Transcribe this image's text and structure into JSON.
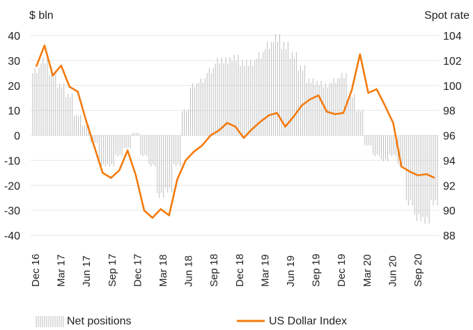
{
  "chart_data": {
    "type": "bar+line",
    "title": "",
    "left_axis": {
      "label": "$ bln",
      "range": [
        -40,
        40
      ],
      "ticks": [
        -40,
        -30,
        -20,
        -10,
        0,
        10,
        20,
        30,
        40
      ]
    },
    "right_axis": {
      "label": "Spot rate",
      "range": [
        88,
        104
      ],
      "ticks": [
        88,
        90,
        92,
        94,
        96,
        98,
        100,
        102,
        104
      ]
    },
    "x_ticks": [
      "Dec 16",
      "Mar 17",
      "Jun 17",
      "Sep 17",
      "Dec 17",
      "Mar 18",
      "Jun 18",
      "Sep 18",
      "Dec 18",
      "Mar 19",
      "Jun 19",
      "Sep 19",
      "Dec 19",
      "Mar 20",
      "Jun 20",
      "Sep 20"
    ],
    "grid": true,
    "legend_position": "bottom",
    "series": [
      {
        "name": "Net positions",
        "kind": "bar",
        "axis": "left",
        "color": "#bdbdbd",
        "months": [
          "Dec 16",
          "Jan 17",
          "Feb 17",
          "Mar 17",
          "Apr 17",
          "May 17",
          "Jun 17",
          "Jul 17",
          "Aug 17",
          "Sep 17",
          "Oct 17",
          "Nov 17",
          "Dec 17",
          "Jan 18",
          "Feb 18",
          "Mar 18",
          "Apr 18",
          "May 18",
          "Jun 18",
          "Jul 18",
          "Aug 18",
          "Sep 18",
          "Oct 18",
          "Nov 18",
          "Dec 18",
          "Jan 19",
          "Feb 19",
          "Mar 19",
          "Apr 19",
          "May 19",
          "Jun 19",
          "Jul 19",
          "Aug 19",
          "Sep 19",
          "Oct 19",
          "Nov 19",
          "Dec 19",
          "Jan 20",
          "Feb 20",
          "Mar 20",
          "Apr 20",
          "May 20",
          "Jun 20",
          "Jul 20",
          "Aug 20",
          "Sep 20",
          "Oct 20",
          "Nov 20",
          "Dec 20"
        ],
        "values": [
          26,
          30,
          25,
          20,
          16,
          8,
          4,
          -3,
          -12,
          -12,
          -8,
          -5,
          1,
          -8,
          -12,
          -24,
          -22,
          -12,
          10,
          20,
          22,
          26,
          30,
          30,
          31,
          29,
          29,
          32,
          36,
          39,
          36,
          32,
          27,
          22,
          21,
          20,
          22,
          24,
          16,
          10,
          -4,
          -8,
          -10,
          -8,
          -12,
          -27,
          -33,
          -34,
          -27
        ]
      },
      {
        "name": "US Dollar Index",
        "kind": "line",
        "axis": "right",
        "color": "#f47a0d",
        "months": [
          "Dec 16",
          "Jan 17",
          "Feb 17",
          "Mar 17",
          "Apr 17",
          "May 17",
          "Jun 17",
          "Jul 17",
          "Aug 17",
          "Sep 17",
          "Oct 17",
          "Nov 17",
          "Dec 17",
          "Jan 18",
          "Feb 18",
          "Mar 18",
          "Apr 18",
          "May 18",
          "Jun 18",
          "Jul 18",
          "Aug 18",
          "Sep 18",
          "Oct 18",
          "Nov 18",
          "Dec 18",
          "Jan 19",
          "Feb 19",
          "Mar 19",
          "Apr 19",
          "May 19",
          "Jun 19",
          "Jul 19",
          "Aug 19",
          "Sep 19",
          "Oct 19",
          "Nov 19",
          "Dec 19",
          "Jan 20",
          "Feb 20",
          "Mar 20",
          "Apr 20",
          "May 20",
          "Jun 20",
          "Jul 20",
          "Aug 20",
          "Sep 20",
          "Oct 20",
          "Nov 20",
          "Dec 20"
        ],
        "values": [
          101.5,
          103.2,
          100.8,
          101.6,
          99.9,
          99.5,
          97.2,
          95.1,
          93.0,
          92.6,
          93.2,
          94.8,
          92.8,
          90.0,
          89.4,
          90.1,
          89.6,
          92.5,
          94.0,
          94.7,
          95.2,
          96.0,
          96.4,
          97.0,
          96.7,
          95.8,
          96.5,
          97.1,
          97.6,
          97.8,
          96.7,
          97.5,
          98.4,
          98.9,
          99.2,
          97.9,
          97.7,
          97.8,
          99.6,
          102.5,
          99.4,
          99.7,
          98.4,
          97.0,
          93.5,
          93.1,
          92.8,
          92.9,
          92.6
        ]
      }
    ]
  }
}
